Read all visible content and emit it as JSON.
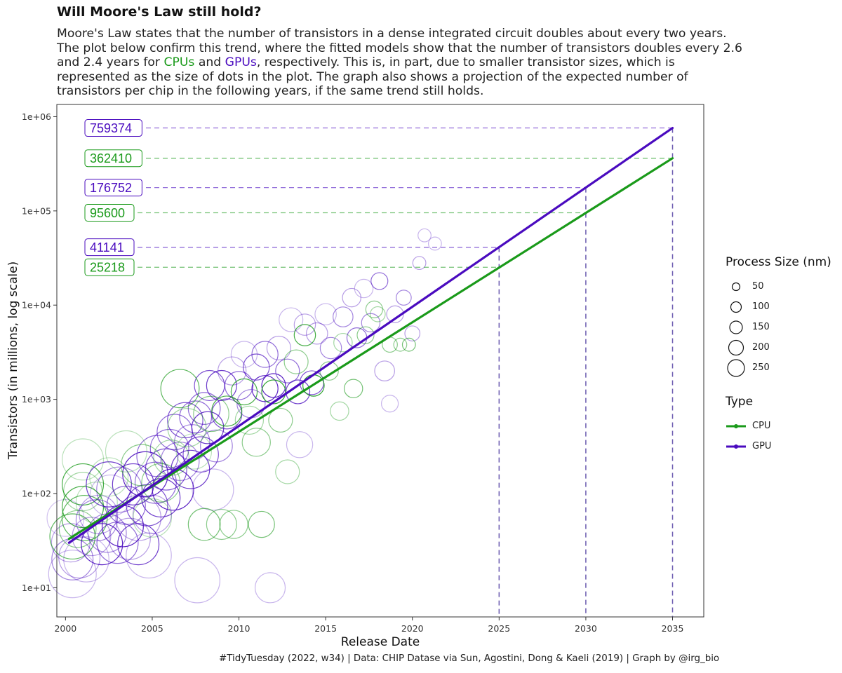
{
  "title": "Will Moore's Law still hold?",
  "subtitle": {
    "before": "Moore's Law states that the number of transistors in a dense integrated circuit doubles about every two years. The plot below confirm this trend, where the fitted models show that the number of transistors doubles every 2.6 and 2.4 years for ",
    "cpu_word": "CPUs",
    "middle": " and ",
    "gpu_word": "GPUs",
    "after": ", respectively. This is, in part, due to smaller transistor sizes, which is represented as the size of dots in the plot. The graph also shows a projection of the expected number of transistors per chip in the following years, if the same trend still holds."
  },
  "caption": "#TidyTuesday (2022, w34) | Data: CHIP Datase via Sun, Agostini, Dong & Kaeli (2019) | Graph by @irg_bio",
  "colors": {
    "cpu": "#1a9a1a",
    "gpu": "#4a0bbf",
    "projection": "#6b5bb0"
  },
  "legend": {
    "size_title": "Process Size (nm)",
    "sizes": [
      "50",
      "100",
      "150",
      "200",
      "250"
    ],
    "type_title": "Type",
    "types": [
      {
        "label": "CPU",
        "color": "#1a9a1a"
      },
      {
        "label": "GPU",
        "color": "#4a0bbf"
      }
    ]
  },
  "chart_data": {
    "type": "scatter",
    "xlabel": "Release Date",
    "ylabel": "Transistors (in millions, log scale)",
    "xlim": [
      1999.5,
      2036.8
    ],
    "ylim_log10": [
      0.69,
      6.13
    ],
    "yscale": "log",
    "x_ticks": [
      2000,
      2005,
      2010,
      2015,
      2020,
      2025,
      2030,
      2035
    ],
    "x_tick_labels": [
      "2000",
      "2005",
      "2010",
      "2015",
      "2020",
      "2025",
      "2030",
      "2035"
    ],
    "y_ticks": [
      10,
      100,
      1000,
      10000,
      100000,
      1000000
    ],
    "y_tick_labels": [
      "1e+01",
      "1e+02",
      "1e+03",
      "1e+04",
      "1e+05",
      "1e+06"
    ],
    "grid": false,
    "series": [
      {
        "name": "CPU",
        "fit_line": {
          "x": [
            2000.2,
            2035
          ],
          "y": [
            33,
            362410
          ]
        }
      },
      {
        "name": "GPU",
        "fit_line": {
          "x": [
            2000.2,
            2035
          ],
          "y": [
            30,
            759374
          ]
        }
      }
    ],
    "projections": [
      {
        "type": "GPU",
        "year": 2025,
        "value": 41141,
        "label": "41141"
      },
      {
        "type": "CPU",
        "year": 2025,
        "value": 25218,
        "label": "25218"
      },
      {
        "type": "GPU",
        "year": 2030,
        "value": 176752,
        "label": "176752"
      },
      {
        "type": "CPU",
        "year": 2030,
        "value": 95600,
        "label": "95600"
      },
      {
        "type": "GPU",
        "year": 2035,
        "value": 759374,
        "label": "759374"
      },
      {
        "type": "CPU",
        "year": 2035,
        "value": 362410,
        "label": "362410"
      }
    ],
    "points": [
      {
        "t": "GPU",
        "x": 2000.0,
        "y": 55,
        "s": 120,
        "a": 0.25
      },
      {
        "t": "GPU",
        "x": 2000.3,
        "y": 30,
        "s": 130,
        "a": 0.4
      },
      {
        "t": "GPU",
        "x": 2000.4,
        "y": 20,
        "s": 150,
        "a": 0.5
      },
      {
        "t": "GPU",
        "x": 2000.4,
        "y": 14,
        "s": 200,
        "a": 0.3
      },
      {
        "t": "GPU",
        "x": 2000.8,
        "y": 21,
        "s": 150,
        "a": 0.4
      },
      {
        "t": "GPU",
        "x": 2001.2,
        "y": 20,
        "s": 180,
        "a": 0.3
      },
      {
        "t": "CPU",
        "x": 2000.4,
        "y": 35,
        "s": 180,
        "a": 0.7
      },
      {
        "t": "CPU",
        "x": 2001.0,
        "y": 230,
        "s": 150,
        "a": 0.3
      },
      {
        "t": "CPU",
        "x": 2001.0,
        "y": 125,
        "s": 150,
        "a": 0.8
      },
      {
        "t": "CPU",
        "x": 2001.0,
        "y": 105,
        "s": 130,
        "a": 0.4
      },
      {
        "t": "CPU",
        "x": 2001.0,
        "y": 72,
        "s": 150,
        "a": 0.8
      },
      {
        "t": "CPU",
        "x": 2001.1,
        "y": 55,
        "s": 180,
        "a": 0.7
      },
      {
        "t": "CPU",
        "x": 2000.7,
        "y": 42,
        "s": 120,
        "a": 0.5
      },
      {
        "t": "GPU",
        "x": 2001.5,
        "y": 35,
        "s": 130,
        "a": 0.4
      },
      {
        "t": "GPU",
        "x": 2001.8,
        "y": 52,
        "s": 150,
        "a": 0.5
      },
      {
        "t": "GPU",
        "x": 2001.9,
        "y": 60,
        "s": 130,
        "a": 0.4
      },
      {
        "t": "GPU",
        "x": 2002.1,
        "y": 29,
        "s": 150,
        "a": 0.9
      },
      {
        "t": "GPU",
        "x": 2002.4,
        "y": 38,
        "s": 130,
        "a": 0.5
      },
      {
        "t": "GPU",
        "x": 2002.6,
        "y": 95,
        "s": 150,
        "a": 0.3
      },
      {
        "t": "GPU",
        "x": 2002.5,
        "y": 125,
        "s": 180,
        "a": 0.8
      },
      {
        "t": "GPU",
        "x": 2003.0,
        "y": 30,
        "s": 150,
        "a": 0.6
      },
      {
        "t": "GPU",
        "x": 2003.1,
        "y": 110,
        "s": 180,
        "a": 0.5
      },
      {
        "t": "GPU",
        "x": 2003.3,
        "y": 45,
        "s": 150,
        "a": 0.9
      },
      {
        "t": "GPU",
        "x": 2003.5,
        "y": 75,
        "s": 130,
        "a": 0.6
      },
      {
        "t": "GPU",
        "x": 2003.7,
        "y": 33,
        "s": 150,
        "a": 0.4
      },
      {
        "t": "GPU",
        "x": 2003.9,
        "y": 125,
        "s": 150,
        "a": 0.8
      },
      {
        "t": "GPU",
        "x": 2004.2,
        "y": 29,
        "s": 150,
        "a": 0.8
      },
      {
        "t": "GPU",
        "x": 2004.2,
        "y": 55,
        "s": 180,
        "a": 0.4
      },
      {
        "t": "GPU",
        "x": 2004.6,
        "y": 160,
        "s": 180,
        "a": 0.9
      },
      {
        "t": "GPU",
        "x": 2004.7,
        "y": 75,
        "s": 150,
        "a": 0.7
      },
      {
        "t": "GPU",
        "x": 2004.8,
        "y": 22,
        "s": 180,
        "a": 0.3
      },
      {
        "t": "GPU",
        "x": 2005.0,
        "y": 60,
        "s": 130,
        "a": 0.4
      },
      {
        "t": "GPU",
        "x": 2005.2,
        "y": 130,
        "s": 150,
        "a": 0.6
      },
      {
        "t": "GPU",
        "x": 2005.3,
        "y": 250,
        "s": 150,
        "a": 0.6
      },
      {
        "t": "GPU",
        "x": 2005.5,
        "y": 90,
        "s": 130,
        "a": 0.8
      },
      {
        "t": "GPU",
        "x": 2005.8,
        "y": 180,
        "s": 150,
        "a": 0.7
      },
      {
        "t": "GPU",
        "x": 2006.0,
        "y": 300,
        "s": 130,
        "a": 0.6
      },
      {
        "t": "GPU",
        "x": 2006.2,
        "y": 110,
        "s": 150,
        "a": 0.9
      },
      {
        "t": "GPU",
        "x": 2006.3,
        "y": 450,
        "s": 110,
        "a": 0.6
      },
      {
        "t": "GPU",
        "x": 2006.6,
        "y": 220,
        "s": 130,
        "a": 0.5
      },
      {
        "t": "GPU",
        "x": 2006.9,
        "y": 600,
        "s": 110,
        "a": 0.7
      },
      {
        "t": "GPU",
        "x": 2007.2,
        "y": 180,
        "s": 130,
        "a": 0.8
      },
      {
        "t": "GPU",
        "x": 2007.3,
        "y": 350,
        "s": 110,
        "a": 0.5
      },
      {
        "t": "GPU",
        "x": 2007.5,
        "y": 650,
        "s": 90,
        "a": 0.6
      },
      {
        "t": "GPU",
        "x": 2007.8,
        "y": 260,
        "s": 110,
        "a": 0.7
      },
      {
        "t": "GPU",
        "x": 2008.0,
        "y": 800,
        "s": 90,
        "a": 0.6
      },
      {
        "t": "GPU",
        "x": 2008.2,
        "y": 500,
        "s": 90,
        "a": 0.8
      },
      {
        "t": "GPU",
        "x": 2008.3,
        "y": 1400,
        "s": 80,
        "a": 0.7
      },
      {
        "t": "GPU",
        "x": 2008.7,
        "y": 320,
        "s": 90,
        "a": 0.5
      },
      {
        "t": "GPU",
        "x": 2009.0,
        "y": 1400,
        "s": 80,
        "a": 0.8
      },
      {
        "t": "GPU",
        "x": 2009.3,
        "y": 700,
        "s": 80,
        "a": 0.7
      },
      {
        "t": "GPU",
        "x": 2009.6,
        "y": 2000,
        "s": 70,
        "a": 0.4
      },
      {
        "t": "GPU",
        "x": 2010.0,
        "y": 1400,
        "s": 70,
        "a": 0.6
      },
      {
        "t": "GPU",
        "x": 2010.3,
        "y": 3000,
        "s": 60,
        "a": 0.3
      },
      {
        "t": "GPU",
        "x": 2010.7,
        "y": 900,
        "s": 70,
        "a": 0.5
      },
      {
        "t": "GPU",
        "x": 2011.0,
        "y": 2200,
        "s": 60,
        "a": 0.7
      },
      {
        "t": "GPU",
        "x": 2011.5,
        "y": 3000,
        "s": 60,
        "a": 0.6
      },
      {
        "t": "GPU",
        "x": 2011.5,
        "y": 1300,
        "s": 60,
        "a": 0.9
      },
      {
        "t": "GPU",
        "x": 2012.0,
        "y": 1400,
        "s": 50,
        "a": 0.9
      },
      {
        "t": "GPU",
        "x": 2012.3,
        "y": 3500,
        "s": 50,
        "a": 0.4
      },
      {
        "t": "GPU",
        "x": 2012.8,
        "y": 2000,
        "s": 50,
        "a": 0.6
      },
      {
        "t": "GPU",
        "x": 2013.0,
        "y": 7000,
        "s": 50,
        "a": 0.3
      },
      {
        "t": "GPU",
        "x": 2013.4,
        "y": 1200,
        "s": 50,
        "a": 0.8
      },
      {
        "t": "GPU",
        "x": 2013.8,
        "y": 6200,
        "s": 40,
        "a": 0.4
      },
      {
        "t": "GPU",
        "x": 2014.2,
        "y": 1500,
        "s": 50,
        "a": 0.7
      },
      {
        "t": "GPU",
        "x": 2014.5,
        "y": 5000,
        "s": 40,
        "a": 0.4
      },
      {
        "t": "GPU",
        "x": 2015.0,
        "y": 8000,
        "s": 40,
        "a": 0.3
      },
      {
        "t": "GPU",
        "x": 2015.3,
        "y": 3500,
        "s": 40,
        "a": 0.5
      },
      {
        "t": "GPU",
        "x": 2016.0,
        "y": 7500,
        "s": 35,
        "a": 0.5
      },
      {
        "t": "GPU",
        "x": 2016.5,
        "y": 12000,
        "s": 30,
        "a": 0.4
      },
      {
        "t": "GPU",
        "x": 2016.8,
        "y": 4500,
        "s": 35,
        "a": 0.6
      },
      {
        "t": "GPU",
        "x": 2017.2,
        "y": 15000,
        "s": 30,
        "a": 0.3
      },
      {
        "t": "GPU",
        "x": 2017.6,
        "y": 6500,
        "s": 30,
        "a": 0.5
      },
      {
        "t": "GPU",
        "x": 2018.1,
        "y": 18000,
        "s": 25,
        "a": 0.6
      },
      {
        "t": "GPU",
        "x": 2018.4,
        "y": 2000,
        "s": 35,
        "a": 0.4
      },
      {
        "t": "GPU",
        "x": 2019.0,
        "y": 8000,
        "s": 25,
        "a": 0.4
      },
      {
        "t": "GPU",
        "x": 2019.5,
        "y": 12000,
        "s": 20,
        "a": 0.5
      },
      {
        "t": "GPU",
        "x": 2020.0,
        "y": 5000,
        "s": 20,
        "a": 0.4
      },
      {
        "t": "GPU",
        "x": 2020.4,
        "y": 28000,
        "s": 15,
        "a": 0.4
      },
      {
        "t": "GPU",
        "x": 2020.7,
        "y": 55000,
        "s": 15,
        "a": 0.3
      },
      {
        "t": "GPU",
        "x": 2021.3,
        "y": 45000,
        "s": 15,
        "a": 0.3
      },
      {
        "t": "GPU",
        "x": 2018.7,
        "y": 900,
        "s": 25,
        "a": 0.3
      },
      {
        "t": "GPU",
        "x": 2013.5,
        "y": 330,
        "s": 60,
        "a": 0.3
      },
      {
        "t": "GPU",
        "x": 2008.5,
        "y": 110,
        "s": 150,
        "a": 0.3
      },
      {
        "t": "GPU",
        "x": 2007.6,
        "y": 12,
        "s": 180,
        "a": 0.3
      },
      {
        "t": "GPU",
        "x": 2011.8,
        "y": 10,
        "s": 80,
        "a": 0.3
      },
      {
        "t": "CPU",
        "x": 2001.8,
        "y": 80,
        "s": 150,
        "a": 0.3
      },
      {
        "t": "CPU",
        "x": 2002.5,
        "y": 150,
        "s": 130,
        "a": 0.3
      },
      {
        "t": "CPU",
        "x": 2003.5,
        "y": 280,
        "s": 150,
        "a": 0.3
      },
      {
        "t": "CPU",
        "x": 2004.4,
        "y": 200,
        "s": 150,
        "a": 0.5
      },
      {
        "t": "CPU",
        "x": 2005.0,
        "y": 55,
        "s": 130,
        "a": 0.3
      },
      {
        "t": "CPU",
        "x": 2005.5,
        "y": 130,
        "s": 130,
        "a": 0.5
      },
      {
        "t": "CPU",
        "x": 2006.1,
        "y": 240,
        "s": 110,
        "a": 0.4
      },
      {
        "t": "CPU",
        "x": 2006.6,
        "y": 1300,
        "s": 130,
        "a": 0.7
      },
      {
        "t": "CPU",
        "x": 2007.0,
        "y": 500,
        "s": 130,
        "a": 0.4
      },
      {
        "t": "CPU",
        "x": 2007.4,
        "y": 280,
        "s": 110,
        "a": 0.3
      },
      {
        "t": "CPU",
        "x": 2008.0,
        "y": 47,
        "s": 90,
        "a": 0.6
      },
      {
        "t": "CPU",
        "x": 2008.4,
        "y": 700,
        "s": 110,
        "a": 0.5
      },
      {
        "t": "CPU",
        "x": 2009.0,
        "y": 47,
        "s": 80,
        "a": 0.5
      },
      {
        "t": "CPU",
        "x": 2009.3,
        "y": 750,
        "s": 80,
        "a": 0.8
      },
      {
        "t": "CPU",
        "x": 2009.7,
        "y": 47,
        "s": 70,
        "a": 0.5
      },
      {
        "t": "CPU",
        "x": 2010.3,
        "y": 1200,
        "s": 60,
        "a": 0.8
      },
      {
        "t": "CPU",
        "x": 2010.6,
        "y": 600,
        "s": 70,
        "a": 0.4
      },
      {
        "t": "CPU",
        "x": 2011.0,
        "y": 350,
        "s": 70,
        "a": 0.5
      },
      {
        "t": "CPU",
        "x": 2011.3,
        "y": 47,
        "s": 60,
        "a": 0.6
      },
      {
        "t": "CPU",
        "x": 2012.0,
        "y": 1200,
        "s": 50,
        "a": 0.9
      },
      {
        "t": "CPU",
        "x": 2012.4,
        "y": 600,
        "s": 50,
        "a": 0.5
      },
      {
        "t": "CPU",
        "x": 2012.8,
        "y": 170,
        "s": 50,
        "a": 0.4
      },
      {
        "t": "CPU",
        "x": 2013.3,
        "y": 2500,
        "s": 50,
        "a": 0.5
      },
      {
        "t": "CPU",
        "x": 2013.8,
        "y": 4800,
        "s": 40,
        "a": 0.8
      },
      {
        "t": "CPU",
        "x": 2014.3,
        "y": 1400,
        "s": 40,
        "a": 0.9
      },
      {
        "t": "CPU",
        "x": 2015.2,
        "y": 2000,
        "s": 30,
        "a": 0.5
      },
      {
        "t": "CPU",
        "x": 2016.0,
        "y": 4000,
        "s": 30,
        "a": 0.4
      },
      {
        "t": "CPU",
        "x": 2016.6,
        "y": 1300,
        "s": 30,
        "a": 0.6
      },
      {
        "t": "CPU",
        "x": 2017.3,
        "y": 4800,
        "s": 25,
        "a": 0.5
      },
      {
        "t": "CPU",
        "x": 2018.0,
        "y": 8000,
        "s": 20,
        "a": 0.4
      },
      {
        "t": "CPU",
        "x": 2018.7,
        "y": 3800,
        "s": 20,
        "a": 0.5
      },
      {
        "t": "CPU",
        "x": 2019.3,
        "y": 3800,
        "s": 15,
        "a": 0.5
      },
      {
        "t": "CPU",
        "x": 2019.8,
        "y": 3800,
        "s": 15,
        "a": 0.6
      },
      {
        "t": "CPU",
        "x": 2017.8,
        "y": 9000,
        "s": 25,
        "a": 0.5
      },
      {
        "t": "CPU",
        "x": 2015.8,
        "y": 750,
        "s": 30,
        "a": 0.4
      }
    ]
  }
}
